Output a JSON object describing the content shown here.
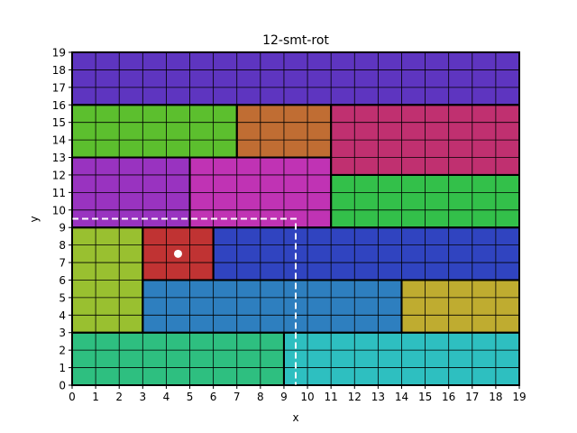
{
  "chart_data": {
    "type": "heatmap",
    "title": "12-smt-rot",
    "xlabel": "x",
    "ylabel": "y",
    "xlim": [
      0,
      19
    ],
    "ylim": [
      0,
      19
    ],
    "xticks": [
      "0",
      "1",
      "2",
      "3",
      "4",
      "5",
      "6",
      "7",
      "8",
      "9",
      "10",
      "11",
      "12",
      "13",
      "14",
      "15",
      "16",
      "17",
      "18",
      "19"
    ],
    "yticks": [
      "0",
      "1",
      "2",
      "3",
      "4",
      "5",
      "6",
      "7",
      "8",
      "9",
      "10",
      "11",
      "12",
      "13",
      "14",
      "15",
      "16",
      "17",
      "18",
      "19"
    ],
    "grid": true,
    "rectangles": [
      {
        "x0": 0,
        "y0": 16,
        "x1": 19,
        "y1": 19,
        "color": "#5e35c0"
      },
      {
        "x0": 0,
        "y0": 13,
        "x1": 7,
        "y1": 16,
        "color": "#5cbf2e"
      },
      {
        "x0": 7,
        "y0": 13,
        "x1": 11,
        "y1": 16,
        "color": "#c06d33"
      },
      {
        "x0": 11,
        "y0": 12,
        "x1": 19,
        "y1": 16,
        "color": "#c03070"
      },
      {
        "x0": 0,
        "y0": 9,
        "x1": 5,
        "y1": 13,
        "color": "#9933c0"
      },
      {
        "x0": 5,
        "y0": 9,
        "x1": 11,
        "y1": 13,
        "color": "#c033b4"
      },
      {
        "x0": 11,
        "y0": 9,
        "x1": 19,
        "y1": 12,
        "color": "#33c04a"
      },
      {
        "x0": 0,
        "y0": 3,
        "x1": 3,
        "y1": 9,
        "color": "#99c030"
      },
      {
        "x0": 3,
        "y0": 6,
        "x1": 6,
        "y1": 9,
        "color": "#c03333"
      },
      {
        "x0": 6,
        "y0": 6,
        "x1": 19,
        "y1": 9,
        "color": "#3044c0"
      },
      {
        "x0": 3,
        "y0": 3,
        "x1": 14,
        "y1": 6,
        "color": "#2e7fbf"
      },
      {
        "x0": 14,
        "y0": 3,
        "x1": 19,
        "y1": 6,
        "color": "#bfac30"
      },
      {
        "x0": 0,
        "y0": 0,
        "x1": 9,
        "y1": 3,
        "color": "#2ebf80"
      },
      {
        "x0": 9,
        "y0": 0,
        "x1": 19,
        "y1": 3,
        "color": "#2ebfc0"
      }
    ],
    "marker": {
      "x": 4.5,
      "y": 7.5,
      "color": "#ffffff"
    },
    "dashed_path": {
      "points": [
        [
          0,
          9.5
        ],
        [
          9.5,
          9.5
        ],
        [
          9.5,
          0
        ]
      ],
      "color": "#ffffff"
    }
  }
}
